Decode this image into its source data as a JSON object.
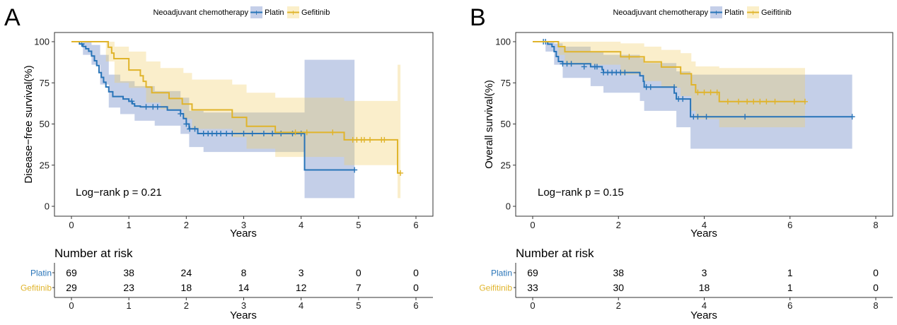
{
  "colors": {
    "platin": "#2874b8",
    "gefitinib": "#e0b42b",
    "platin_ci": "#3a5fb4",
    "gefitinib_ci": "#f2ce6a"
  },
  "chart_data": [
    {
      "panel": "A",
      "type": "line",
      "subtype": "kaplan-meier",
      "legend_title": "Neoadjuvant chemotherapy",
      "legend_position": "top",
      "legend": [
        "Platin",
        "Gefitinib"
      ],
      "ylabel": "Disease−free survival(%)",
      "xlabel": "Years",
      "xlim": [
        0,
        6
      ],
      "ylim": [
        0,
        100
      ],
      "xticks": [
        "0",
        "1",
        "2",
        "3",
        "4",
        "5",
        "6"
      ],
      "yticks": [
        "0",
        "25",
        "50",
        "75",
        "100"
      ],
      "annotation": "Log−rank  p = 0.21",
      "series": [
        {
          "name": "Platin",
          "steps": [
            [
              0,
              100
            ],
            [
              0.14,
              98.6
            ],
            [
              0.2,
              97.1
            ],
            [
              0.25,
              95.7
            ],
            [
              0.3,
              94.2
            ],
            [
              0.35,
              91.3
            ],
            [
              0.4,
              88.4
            ],
            [
              0.44,
              85.5
            ],
            [
              0.48,
              81.2
            ],
            [
              0.52,
              78.3
            ],
            [
              0.56,
              75.4
            ],
            [
              0.6,
              72.5
            ],
            [
              0.65,
              69.6
            ],
            [
              0.72,
              66.7
            ],
            [
              0.9,
              65.2
            ],
            [
              1,
              63.8
            ],
            [
              1.06,
              62.3
            ],
            [
              1.1,
              60.9
            ],
            [
              1.2,
              60.4
            ],
            [
              1.5,
              60.4
            ],
            [
              1.67,
              58.5
            ],
            [
              1.9,
              56.2
            ],
            [
              1.95,
              53.3
            ],
            [
              2.0,
              50
            ],
            [
              2.05,
              47.1
            ],
            [
              2.2,
              44.2
            ],
            [
              4.05,
              44.2
            ],
            [
              4.06,
              22.1
            ],
            [
              4.93,
              22.1
            ]
          ],
          "censor": [
            [
              0.18,
              98.6
            ],
            [
              1.05,
              63.8
            ],
            [
              1.3,
              60.4
            ],
            [
              1.42,
              60.4
            ],
            [
              1.5,
              60.4
            ],
            [
              1.9,
              56.2
            ],
            [
              2.0,
              50.0
            ],
            [
              2.06,
              47.0
            ],
            [
              2.15,
              47.0
            ],
            [
              2.3,
              44.2
            ],
            [
              2.38,
              44.2
            ],
            [
              2.45,
              44.2
            ],
            [
              2.53,
              44.2
            ],
            [
              2.6,
              44.2
            ],
            [
              2.7,
              44.2
            ],
            [
              2.8,
              44.2
            ],
            [
              3.0,
              44.2
            ],
            [
              3.15,
              44.2
            ],
            [
              3.35,
              44.2
            ],
            [
              3.5,
              44.2
            ],
            [
              3.65,
              44.2
            ],
            [
              3.85,
              44.2
            ],
            [
              4.0,
              44.2
            ],
            [
              4.93,
              22.1
            ]
          ],
          "ci": [
            [
              0,
              100,
              100
            ],
            [
              0.2,
              100,
              92
            ],
            [
              0.35,
              98,
              86
            ],
            [
              0.5,
              92,
              74
            ],
            [
              0.65,
              80,
              60
            ],
            [
              0.85,
              76,
              56
            ],
            [
              1.1,
              73,
              52
            ],
            [
              1.45,
              70,
              49
            ],
            [
              1.9,
              66,
              44
            ],
            [
              2.05,
              58,
              36
            ],
            [
              2.3,
              57,
              33
            ],
            [
              4.05,
              57,
              33
            ],
            [
              4.06,
              89,
              5
            ],
            [
              4.93,
              89,
              5
            ]
          ]
        },
        {
          "name": "Gefitinib",
          "steps": [
            [
              0,
              100
            ],
            [
              0.6,
              100
            ],
            [
              0.64,
              96.6
            ],
            [
              0.7,
              93.1
            ],
            [
              0.74,
              89.7
            ],
            [
              0.95,
              89.7
            ],
            [
              1.0,
              82.8
            ],
            [
              1.2,
              79.3
            ],
            [
              1.25,
              75.9
            ],
            [
              1.3,
              72.4
            ],
            [
              1.4,
              69.0
            ],
            [
              1.7,
              65.5
            ],
            [
              1.93,
              62.1
            ],
            [
              2.1,
              58.6
            ],
            [
              2.75,
              58.6
            ],
            [
              2.8,
              54.0
            ],
            [
              3.05,
              48.6
            ],
            [
              3.5,
              48.6
            ],
            [
              3.55,
              44.9
            ],
            [
              4.0,
              44.9
            ],
            [
              4.7,
              44.9
            ],
            [
              4.75,
              40.4
            ],
            [
              5.65,
              40.4
            ],
            [
              5.68,
              20.2
            ],
            [
              5.73,
              20.2
            ]
          ],
          "censor": [
            [
              3.9,
              44.9
            ],
            [
              4.1,
              44.9
            ],
            [
              4.55,
              44.9
            ],
            [
              4.9,
              40.4
            ],
            [
              4.97,
              40.4
            ],
            [
              5.05,
              40.4
            ],
            [
              5.1,
              40.4
            ],
            [
              5.2,
              40.4
            ],
            [
              5.4,
              40.4
            ],
            [
              5.45,
              40.4
            ],
            [
              5.73,
              20.2
            ]
          ],
          "ci": [
            [
              0,
              100,
              100
            ],
            [
              0.6,
              100,
              88
            ],
            [
              0.75,
              97,
              75
            ],
            [
              1.0,
              94,
              72
            ],
            [
              1.3,
              88,
              63
            ],
            [
              1.55,
              84,
              59
            ],
            [
              1.95,
              81,
              53
            ],
            [
              2.1,
              77,
              47
            ],
            [
              2.8,
              74,
              42
            ],
            [
              3.05,
              69,
              35
            ],
            [
              3.55,
              66,
              30
            ],
            [
              4.75,
              64,
              25
            ],
            [
              5.65,
              64,
              25
            ],
            [
              5.68,
              86,
              5
            ],
            [
              5.73,
              86,
              5
            ]
          ]
        }
      ],
      "risk_table": {
        "title": "Number at risk",
        "xlabel": "Years",
        "times": [
          "0",
          "1",
          "2",
          "3",
          "4",
          "5",
          "6"
        ],
        "rows": [
          {
            "group": "Platin",
            "values": [
              "69",
              "38",
              "24",
              "8",
              "3",
              "0",
              "0"
            ]
          },
          {
            "group": "Gefitinib",
            "values": [
              "29",
              "23",
              "18",
              "14",
              "12",
              "7",
              "0"
            ]
          }
        ]
      }
    },
    {
      "panel": "B",
      "type": "line",
      "subtype": "kaplan-meier",
      "legend_title": "Neoadjuvant chemotherapy",
      "legend_position": "top",
      "legend": [
        "Platin",
        "Geifitinib"
      ],
      "ylabel": "Overall survival(%)",
      "xlabel": "Years",
      "xlim": [
        0,
        8
      ],
      "ylim": [
        0,
        100
      ],
      "xticks": [
        "0",
        "2",
        "4",
        "6",
        "8"
      ],
      "yticks": [
        "0",
        "25",
        "50",
        "75",
        "100"
      ],
      "annotation": "Log−rank  p = 0.15",
      "series": [
        {
          "name": "Platin",
          "steps": [
            [
              0,
              100
            ],
            [
              0.3,
              100
            ],
            [
              0.35,
              98.5
            ],
            [
              0.45,
              97
            ],
            [
              0.5,
              94
            ],
            [
              0.55,
              91
            ],
            [
              0.6,
              88
            ],
            [
              0.7,
              86.6
            ],
            [
              1.3,
              86.6
            ],
            [
              1.35,
              84.8
            ],
            [
              1.6,
              84.8
            ],
            [
              1.62,
              83
            ],
            [
              1.65,
              81.3
            ],
            [
              2.2,
              81.3
            ],
            [
              2.5,
              79.3
            ],
            [
              2.58,
              75.9
            ],
            [
              2.6,
              72.4
            ],
            [
              2.8,
              72.4
            ],
            [
              3.05,
              72.4
            ],
            [
              3.3,
              68.8
            ],
            [
              3.35,
              65.2
            ],
            [
              3.65,
              65.2
            ],
            [
              3.68,
              54.4
            ],
            [
              7.45,
              54.4
            ]
          ],
          "censor": [
            [
              0.25,
              100
            ],
            [
              0.3,
              100
            ],
            [
              0.7,
              86.6
            ],
            [
              0.8,
              86.6
            ],
            [
              0.9,
              86.6
            ],
            [
              1.2,
              84.8
            ],
            [
              1.45,
              84.8
            ],
            [
              1.5,
              84.8
            ],
            [
              1.65,
              81.3
            ],
            [
              1.75,
              81.3
            ],
            [
              1.85,
              81.3
            ],
            [
              1.95,
              81.3
            ],
            [
              2.05,
              81.3
            ],
            [
              2.15,
              81.3
            ],
            [
              2.65,
              72.4
            ],
            [
              2.75,
              72.4
            ],
            [
              3.3,
              72.4
            ],
            [
              3.4,
              65.2
            ],
            [
              3.5,
              65.2
            ],
            [
              3.75,
              54.4
            ],
            [
              3.85,
              54.4
            ],
            [
              4.05,
              54.4
            ],
            [
              4.95,
              54.4
            ],
            [
              7.45,
              54.4
            ]
          ],
          "ci": [
            [
              0,
              100,
              100
            ],
            [
              0.3,
              100,
              94
            ],
            [
              0.5,
              99,
              86
            ],
            [
              0.7,
              97,
              78
            ],
            [
              1.35,
              94,
              73
            ],
            [
              1.65,
              92,
              69
            ],
            [
              2.5,
              90,
              64
            ],
            [
              2.6,
              87,
              58
            ],
            [
              3.35,
              82,
              48
            ],
            [
              3.68,
              80,
              35
            ],
            [
              7.45,
              80,
              35
            ]
          ]
        },
        {
          "name": "Geifitinib",
          "steps": [
            [
              0,
              100
            ],
            [
              0.55,
              100
            ],
            [
              0.6,
              97
            ],
            [
              0.75,
              93.9
            ],
            [
              2.0,
              93.9
            ],
            [
              2.05,
              90.8
            ],
            [
              2.55,
              90.8
            ],
            [
              2.6,
              87.7
            ],
            [
              2.95,
              87.7
            ],
            [
              3.0,
              84.6
            ],
            [
              3.4,
              84.6
            ],
            [
              3.45,
              80.5
            ],
            [
              3.7,
              73.8
            ],
            [
              3.8,
              69.2
            ],
            [
              4.3,
              69.2
            ],
            [
              4.35,
              63.6
            ],
            [
              6.35,
              63.6
            ]
          ],
          "censor": [
            [
              2.25,
              90.8
            ],
            [
              3.85,
              69.2
            ],
            [
              4.0,
              69.2
            ],
            [
              4.15,
              69.2
            ],
            [
              4.3,
              69.2
            ],
            [
              4.55,
              63.6
            ],
            [
              4.8,
              63.6
            ],
            [
              5.0,
              63.6
            ],
            [
              5.15,
              63.6
            ],
            [
              5.3,
              63.6
            ],
            [
              5.45,
              63.6
            ],
            [
              5.65,
              63.6
            ],
            [
              6.1,
              63.6
            ],
            [
              6.35,
              63.6
            ]
          ],
          "ci": [
            [
              0,
              100,
              100
            ],
            [
              0.6,
              100,
              92
            ],
            [
              0.75,
              100,
              86
            ],
            [
              2.05,
              99,
              80
            ],
            [
              2.6,
              97,
              76
            ],
            [
              3.0,
              95,
              72
            ],
            [
              3.45,
              93,
              67
            ],
            [
              3.7,
              88,
              58
            ],
            [
              3.8,
              85,
              53
            ],
            [
              4.35,
              84,
              48
            ],
            [
              6.35,
              84,
              48
            ]
          ]
        }
      ],
      "risk_table": {
        "title": "Number at risk",
        "xlabel": "Years",
        "times": [
          "0",
          "2",
          "4",
          "6",
          "8"
        ],
        "rows": [
          {
            "group": "Platin",
            "values": [
              "69",
              "38",
              "3",
              "1",
              "0"
            ]
          },
          {
            "group": "Geifitinib",
            "values": [
              "33",
              "30",
              "18",
              "1",
              "0"
            ]
          }
        ]
      }
    }
  ]
}
